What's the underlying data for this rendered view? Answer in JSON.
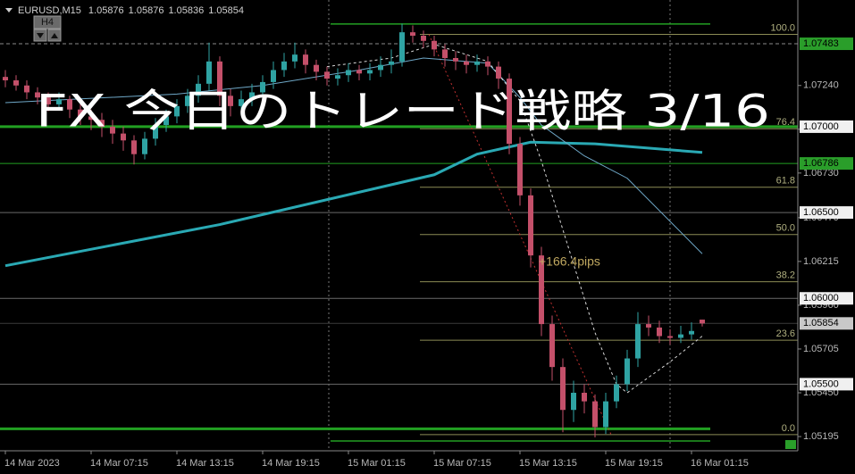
{
  "chart_data": {
    "type": "candlestick",
    "title": "FX 今日のトレード戦略 3/16",
    "symbol": "EURUSD,M15",
    "ohlc": [
      1.05876,
      1.05876,
      1.05836,
      1.05854
    ],
    "timeframe_button": "H4",
    "annotation": "+166.4pips",
    "bull_color": "#2fa3a3",
    "bear_color": "#c4506a",
    "categories": [
      "14 Mar 2023",
      null,
      null,
      null,
      null,
      null,
      null,
      null,
      "14 Mar 07:15",
      null,
      null,
      null,
      null,
      null,
      null,
      null,
      "14 Mar 13:15",
      null,
      null,
      null,
      null,
      null,
      null,
      null,
      "14 Mar 19:15",
      null,
      null,
      null,
      null,
      null,
      null,
      null,
      "15 Mar 01:15",
      null,
      null,
      null,
      null,
      null,
      null,
      null,
      "15 Mar 07:15",
      null,
      null,
      null,
      null,
      null,
      null,
      null,
      "15 Mar 13:15",
      null,
      null,
      null,
      null,
      null,
      null,
      null,
      "15 Mar 19:15",
      null,
      null,
      null,
      null,
      null,
      null,
      null,
      "16 Mar 01:15",
      null
    ],
    "open": [
      1.0729,
      1.0727,
      1.0724,
      1.072,
      1.0717,
      1.0713,
      1.0716,
      1.071,
      1.0706,
      1.0704,
      1.07,
      1.0696,
      1.0692,
      1.0684,
      1.0693,
      1.0701,
      1.0706,
      1.0712,
      1.0718,
      1.0725,
      1.0738,
      1.0718,
      1.0712,
      1.0716,
      1.072,
      1.0726,
      1.0733,
      1.0738,
      1.0742,
      1.0736,
      1.0732,
      1.0728,
      1.073,
      1.0733,
      1.0731,
      1.0733,
      1.0736,
      1.0738,
      1.0755,
      1.0753,
      1.075,
      1.0745,
      1.074,
      1.0738,
      1.0736,
      1.0738,
      1.0735,
      1.0728,
      1.069,
      1.066,
      1.0625,
      1.0585,
      1.056,
      1.0535,
      1.0545,
      1.054,
      1.0525,
      1.054,
      1.055,
      1.0565,
      1.0585,
      1.0583,
      1.0578,
      1.0577,
      1.0579,
      1.05876
    ],
    "high": [
      1.0733,
      1.073,
      1.0727,
      1.0723,
      1.072,
      1.072,
      1.0718,
      1.0713,
      1.071,
      1.0708,
      1.0704,
      1.07,
      1.0695,
      1.0697,
      1.0705,
      1.071,
      1.0716,
      1.0722,
      1.073,
      1.0749,
      1.0741,
      1.0722,
      1.0721,
      1.0725,
      1.073,
      1.0738,
      1.0743,
      1.0749,
      1.0745,
      1.0739,
      1.0735,
      1.0734,
      1.0737,
      1.0736,
      1.0737,
      1.0741,
      1.0745,
      1.076,
      1.0759,
      1.0756,
      1.0753,
      1.0748,
      1.0744,
      1.0742,
      1.0742,
      1.0741,
      1.0738,
      1.0731,
      1.0694,
      1.0664,
      1.063,
      1.059,
      1.0565,
      1.0552,
      1.055,
      1.0544,
      1.0545,
      1.0555,
      1.057,
      1.0592,
      1.059,
      1.0587,
      1.0582,
      1.0584,
      1.0586,
      1.05876
    ],
    "low": [
      1.0723,
      1.0721,
      1.0716,
      1.0713,
      1.0709,
      1.071,
      1.0705,
      1.0701,
      1.0698,
      1.0694,
      1.069,
      1.0686,
      1.0678,
      1.0681,
      1.0689,
      1.0697,
      1.0702,
      1.0708,
      1.0714,
      1.0721,
      1.0712,
      1.0706,
      1.0708,
      1.0712,
      1.0716,
      1.0722,
      1.0729,
      1.0734,
      1.0731,
      1.0727,
      1.0724,
      1.0724,
      1.0726,
      1.0727,
      1.0727,
      1.0729,
      1.0731,
      1.0735,
      1.0749,
      1.0746,
      1.0741,
      1.0735,
      1.0733,
      1.0731,
      1.0732,
      1.073,
      1.0722,
      1.0684,
      1.0654,
      1.0618,
      1.0578,
      1.0552,
      1.0522,
      1.0528,
      1.0533,
      1.0519,
      1.0521,
      1.0536,
      1.0546,
      1.056,
      1.0578,
      1.0574,
      1.0573,
      1.0574,
      1.0576,
      1.05836
    ],
    "close": [
      1.0727,
      1.0724,
      1.072,
      1.0717,
      1.0713,
      1.0716,
      1.071,
      1.0706,
      1.0704,
      1.07,
      1.0696,
      1.0692,
      1.0684,
      1.0693,
      1.0701,
      1.0706,
      1.0712,
      1.0718,
      1.0725,
      1.0738,
      1.0718,
      1.0712,
      1.0716,
      1.072,
      1.0726,
      1.0733,
      1.0738,
      1.0742,
      1.0736,
      1.0732,
      1.0728,
      1.073,
      1.0733,
      1.0731,
      1.0733,
      1.0736,
      1.0738,
      1.0755,
      1.0753,
      1.075,
      1.0745,
      1.074,
      1.0738,
      1.0736,
      1.0738,
      1.0735,
      1.0728,
      1.069,
      1.066,
      1.0625,
      1.0585,
      1.056,
      1.0535,
      1.0545,
      1.054,
      1.0525,
      1.054,
      1.055,
      1.0565,
      1.0585,
      1.0583,
      1.0578,
      1.0577,
      1.0579,
      1.0581,
      1.05854
    ],
    "ylim": [
      1.05112,
      1.07738
    ],
    "yticks": [
      {
        "value": 1.0724,
        "label": "1.07240"
      },
      {
        "value": 1.06985,
        "label": "1.06985"
      },
      {
        "value": 1.0673,
        "label": "1.06730"
      },
      {
        "value": 1.0647,
        "label": "1.06470"
      },
      {
        "value": 1.06215,
        "label": "1.06215"
      },
      {
        "value": 1.0596,
        "label": "1.05960"
      },
      {
        "value": 1.05705,
        "label": "1.05705"
      },
      {
        "value": 1.0545,
        "label": "1.05450"
      },
      {
        "value": 1.05195,
        "label": "1.05195"
      }
    ],
    "price_labels": [
      {
        "value": 1.07483,
        "label": "1.07483",
        "color": "#2a9e2a"
      },
      {
        "value": 1.07,
        "label": "1.07000",
        "color": "#f0f0f0"
      },
      {
        "value": 1.06786,
        "label": "1.06786",
        "color": "#2a9e2a"
      },
      {
        "value": 1.065,
        "label": "1.06500",
        "color": "#f0f0f0"
      },
      {
        "value": 1.06,
        "label": "1.06000",
        "color": "#f0f0f0"
      },
      {
        "value": 1.05854,
        "label": "1.05854",
        "color": "#c8c8c8"
      },
      {
        "value": 1.055,
        "label": "1.05500",
        "color": "#f0f0f0"
      }
    ],
    "levels": [
      {
        "value": 1.07483,
        "color": "#8a8a8a",
        "width": 1,
        "dash": true,
        "full": true
      },
      {
        "value": 1.07,
        "color": "#22a022",
        "width": 3,
        "dash": false,
        "full": true
      },
      {
        "value": 1.06786,
        "color": "#22a022",
        "width": 1,
        "dash": false,
        "full": true
      },
      {
        "value": 1.065,
        "color": "#6a6a6a",
        "width": 1,
        "dash": false,
        "full": true
      },
      {
        "value": 1.06,
        "color": "#6a6a6a",
        "width": 1,
        "dash": false,
        "full": true
      },
      {
        "value": 1.05854,
        "color": "#3a3a3a",
        "width": 1,
        "dash": false,
        "full": true
      },
      {
        "value": 1.055,
        "color": "#6a6a6a",
        "width": 1,
        "dash": false,
        "full": true
      },
      {
        "value": 1.0524,
        "color": "#22a022",
        "width": 3,
        "dash": false,
        "full": false
      }
    ],
    "channel": [
      1.07598,
      1.05169
    ],
    "fib": {
      "high": 1.07538,
      "low": 1.05206,
      "color": "#8c8c55",
      "levels": [
        {
          "value": 100,
          "label": "100.0"
        },
        {
          "value": 76.4,
          "label": "76.4"
        },
        {
          "value": 61.8,
          "label": "61.8"
        },
        {
          "value": 50,
          "label": "50.0"
        },
        {
          "value": 38.2,
          "label": "38.2"
        },
        {
          "value": 23.6,
          "label": "23.6"
        },
        {
          "value": 0,
          "label": "0.0"
        }
      ]
    },
    "overlays": [
      {
        "color": "#2aa9b4",
        "width": 3,
        "dash": false,
        "x": [
          0,
          20,
          40,
          44,
          49,
          55,
          65
        ],
        "values": [
          1.0619,
          1.0643,
          1.0672,
          1.0684,
          1.0691,
          1.069,
          1.0685
        ]
      },
      {
        "color": "#6fa8c8",
        "width": 1,
        "dash": false,
        "x": [
          0,
          16,
          24,
          33,
          39,
          45,
          48,
          50,
          54,
          58,
          65
        ],
        "values": [
          1.0714,
          1.0719,
          1.0724,
          1.0733,
          1.074,
          1.0737,
          1.0717,
          1.0701,
          1.0683,
          1.067,
          1.0626
        ]
      },
      {
        "color": "#d8d8d8",
        "width": 1,
        "dash": true,
        "x": [
          30,
          36,
          40,
          45,
          48,
          50,
          52,
          55,
          57,
          58,
          62,
          65
        ],
        "values": [
          1.0735,
          1.074,
          1.0748,
          1.0738,
          1.0715,
          1.068,
          1.064,
          1.058,
          1.055,
          1.0545,
          1.0563,
          1.0578
        ]
      }
    ]
  }
}
